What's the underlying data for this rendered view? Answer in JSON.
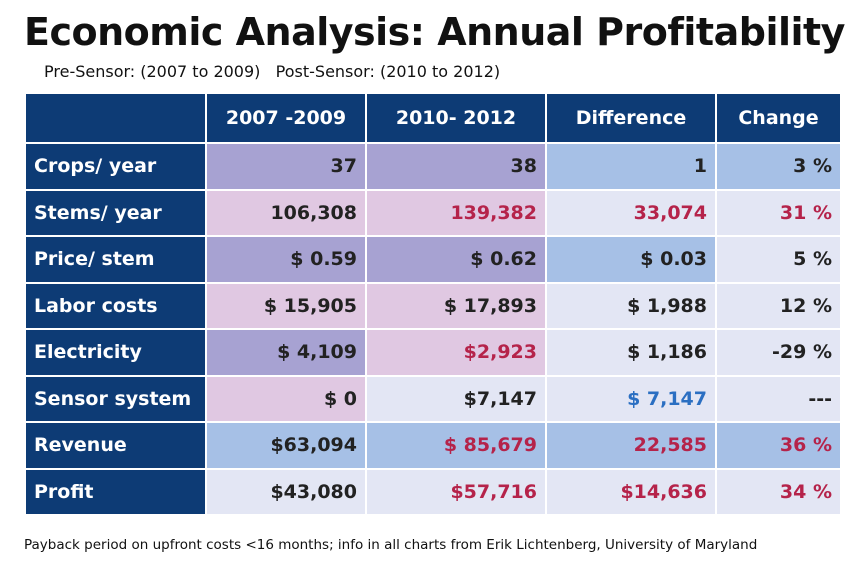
{
  "header": {
    "title": "Economic Analysis: Annual Profitability",
    "subtitle": "Pre-Sensor: (2007 to 2009)   Post-Sensor: (2010 to 2012)"
  },
  "table": {
    "columns": [
      "2007 -2009",
      "2010- 2012",
      "Difference",
      "Change"
    ],
    "rows": [
      {
        "label": "Crops/ year",
        "cells": [
          "37",
          "38",
          "1",
          "3 %"
        ]
      },
      {
        "label": "Stems/ year",
        "cells": [
          "106,308",
          "139,382",
          "33,074",
          "31 %"
        ]
      },
      {
        "label": "Price/ stem",
        "cells": [
          "$ 0.59",
          "$ 0.62",
          "$ 0.03",
          "5 %"
        ]
      },
      {
        "label": "Labor costs",
        "cells": [
          "$ 15,905",
          "$ 17,893",
          "$ 1,988",
          "12 %"
        ]
      },
      {
        "label": "Electricity",
        "cells": [
          "$ 4,109",
          "$2,923",
          "$ 1,186",
          "-29 %"
        ]
      },
      {
        "label": "Sensor system",
        "cells": [
          "$ 0",
          "$7,147",
          "$ 7,147",
          "---"
        ]
      },
      {
        "label": "Revenue",
        "cells": [
          "$63,094",
          "$ 85,679",
          "22,585",
          "36 %"
        ]
      },
      {
        "label": "Profit",
        "cells": [
          "$43,080",
          "$57,716",
          "$14,636",
          "34 %"
        ]
      }
    ]
  },
  "footer": "Payback period on upfront costs <16 months; info in all charts from Erik Lichtenberg, University of Maryland"
}
